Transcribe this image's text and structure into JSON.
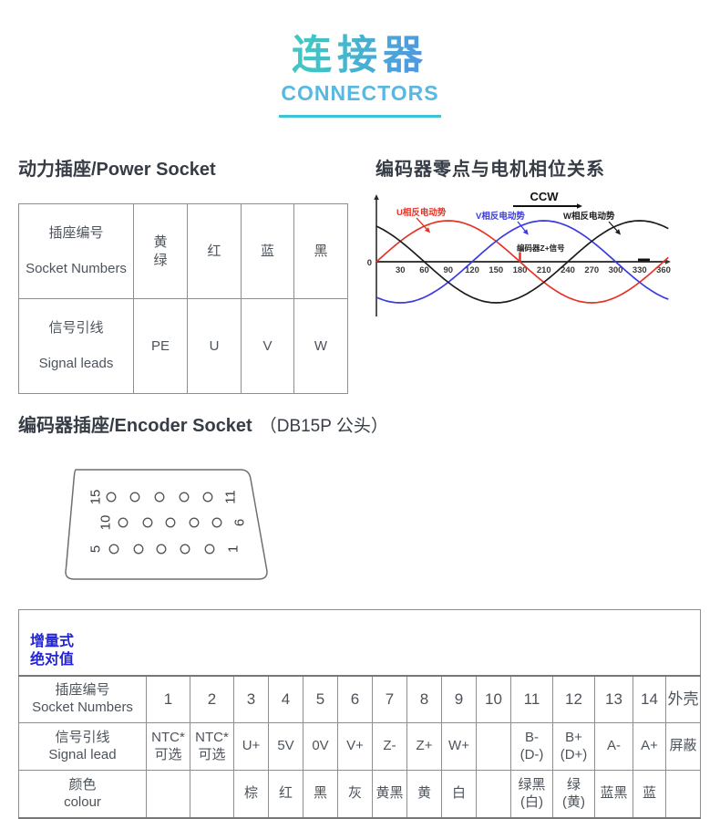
{
  "header": {
    "title_cn": "连接器",
    "title_en": "CONNECTORS"
  },
  "power_socket": {
    "heading": "动力插座/Power Socket",
    "rows": [
      {
        "label_cn": "插座编号",
        "label_en": "Socket Numbers",
        "cells": [
          "黄\n绿",
          "红",
          "蓝",
          "黑"
        ]
      },
      {
        "label_cn": "信号引线",
        "label_en": "Signal leads",
        "cells": [
          "PE",
          "U",
          "V",
          "W"
        ]
      }
    ]
  },
  "encoder_phase": {
    "heading": "编码器零点与电机相位关系",
    "chart": {
      "type": "line",
      "direction_label": "CCW",
      "origin_label": "0",
      "x_ticks": [
        30,
        60,
        90,
        120,
        150,
        180,
        210,
        240,
        270,
        300,
        330,
        360
      ],
      "x_range": [
        0,
        360
      ],
      "amplitude": 1,
      "series": [
        {
          "name": "U相反电动势",
          "color": "#e63326",
          "phase_deg": 0
        },
        {
          "name": "V相反电动势",
          "color": "#3a3ae0",
          "phase_deg": 120
        },
        {
          "name": "W相反电动势",
          "color": "#1c1c1c",
          "phase_deg": 240
        }
      ],
      "z_marker": {
        "label": "编码器Z+信号",
        "position_deg": 180,
        "color": "#e63326"
      }
    }
  },
  "encoder_socket": {
    "heading_main": "编码器插座/Encoder Socket",
    "heading_note": "（DB15P 公头）",
    "pin_rows": [
      {
        "left": "15",
        "right": "11"
      },
      {
        "left": "10",
        "right": "6"
      },
      {
        "left": "5",
        "right": "1"
      }
    ]
  },
  "encoder_table": {
    "tabs": [
      "增量式",
      "绝对值"
    ],
    "rows": [
      {
        "label": "插座编号\nSocket Numbers",
        "cells": [
          "1",
          "2",
          "3",
          "4",
          "5",
          "6",
          "7",
          "8",
          "9",
          "10",
          "11",
          "12",
          "13",
          "14",
          "外壳"
        ]
      },
      {
        "label": "信号引线\nSignal lead",
        "cells": [
          "NTC*\n可选",
          "NTC*\n可选",
          "U+",
          "5V",
          "0V",
          "V+",
          "Z-",
          "Z+",
          "W+",
          "",
          "B-\n(D-)",
          "B+\n(D+)",
          "A-",
          "A+",
          "屏蔽"
        ]
      },
      {
        "label": "颜色\ncolour",
        "cells": [
          "",
          "",
          "棕",
          "红",
          "黑",
          "灰",
          "黄黑",
          "黄",
          "白",
          "",
          "绿黑\n(白)",
          "绿\n(黄)",
          "蓝黑",
          "蓝",
          ""
        ]
      }
    ]
  }
}
